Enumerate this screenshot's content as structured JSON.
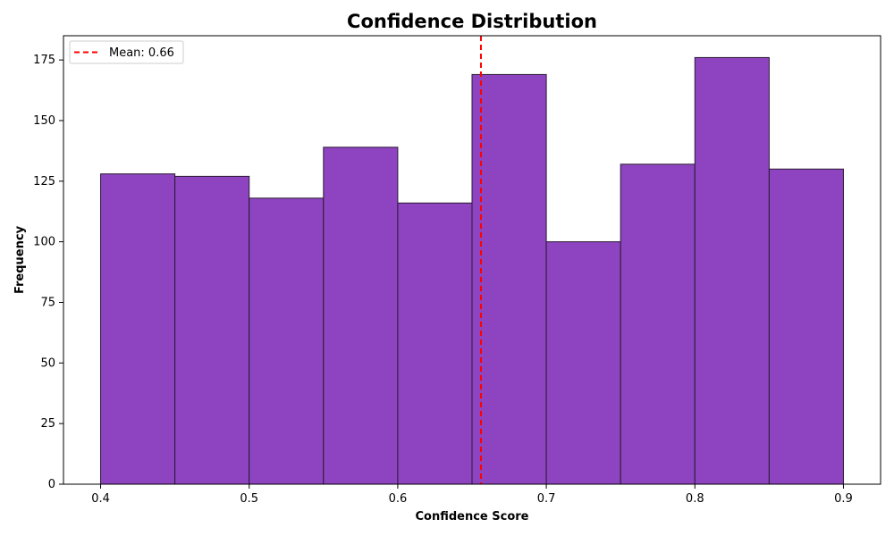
{
  "chart_data": {
    "type": "bar",
    "title": "Confidence Distribution",
    "xlabel": "Confidence Score",
    "ylabel": "Frequency",
    "bins": [
      {
        "start": 0.4,
        "end": 0.45,
        "value": 128
      },
      {
        "start": 0.45,
        "end": 0.5,
        "value": 127
      },
      {
        "start": 0.5,
        "end": 0.55,
        "value": 118
      },
      {
        "start": 0.55,
        "end": 0.6,
        "value": 139
      },
      {
        "start": 0.6,
        "end": 0.65,
        "value": 116
      },
      {
        "start": 0.65,
        "end": 0.7,
        "value": 169
      },
      {
        "start": 0.7,
        "end": 0.75,
        "value": 100
      },
      {
        "start": 0.75,
        "end": 0.8,
        "value": 132
      },
      {
        "start": 0.8,
        "end": 0.85,
        "value": 176
      },
      {
        "start": 0.85,
        "end": 0.9,
        "value": 130
      }
    ],
    "xlim": [
      0.375,
      0.925
    ],
    "ylim": [
      0,
      185
    ],
    "xticks": [
      0.4,
      0.5,
      0.6,
      0.7,
      0.8,
      0.9
    ],
    "xtick_labels": [
      "0.4",
      "0.5",
      "0.6",
      "0.7",
      "0.8",
      "0.9"
    ],
    "yticks": [
      0,
      25,
      50,
      75,
      100,
      125,
      150,
      175
    ],
    "ytick_labels": [
      "0",
      "25",
      "50",
      "75",
      "100",
      "125",
      "150",
      "175"
    ],
    "mean_line": {
      "value": 0.656,
      "label": "Mean: 0.66",
      "color": "#ff0000",
      "style": "dashed"
    },
    "legend": {
      "placement": "top-left",
      "entries": [
        "Mean: 0.66"
      ]
    },
    "bar_color": "#8e44c0",
    "bar_edge_color": "#2a1a33",
    "grid": false
  }
}
